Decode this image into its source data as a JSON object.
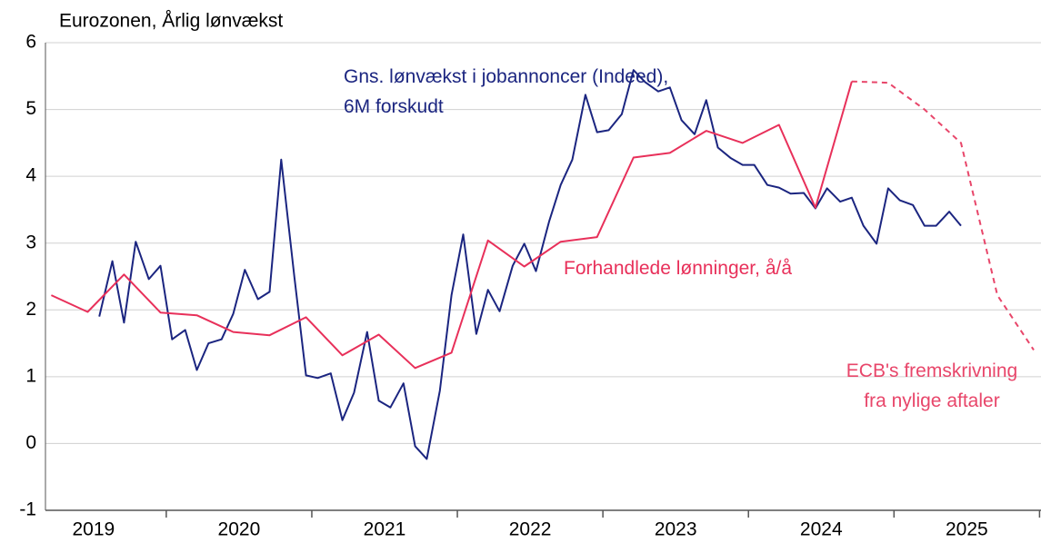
{
  "chart_data": {
    "type": "line",
    "title": "Eurozonen, Årlig lønvækst",
    "categories": [
      "2019",
      "2020",
      "2021",
      "2022",
      "2023",
      "2024",
      "2025"
    ],
    "xlim": [
      2019.17,
      2026.01
    ],
    "xticks": [
      2020,
      2021,
      2022,
      2023,
      2024,
      2025,
      2026
    ],
    "ylim": [
      -1,
      6
    ],
    "yticks": [
      -1,
      0,
      1,
      2,
      3,
      4,
      5,
      6
    ],
    "grid": true,
    "series": [
      {
        "name": "Gns. lønvækst i jobannoncer (Indeed),\n6M forskudt",
        "color": "#1b2580",
        "dashed": false,
        "x": [
          2019.54,
          2019.63,
          2019.71,
          2019.79,
          2019.88,
          2019.96,
          2020.04,
          2020.13,
          2020.21,
          2020.29,
          2020.38,
          2020.46,
          2020.54,
          2020.63,
          2020.71,
          2020.79,
          2020.88,
          2020.96,
          2021.04,
          2021.13,
          2021.21,
          2021.29,
          2021.38,
          2021.46,
          2021.54,
          2021.63,
          2021.71,
          2021.79,
          2021.88,
          2021.96,
          2022.04,
          2022.13,
          2022.21,
          2022.29,
          2022.38,
          2022.46,
          2022.54,
          2022.63,
          2022.71,
          2022.79,
          2022.88,
          2022.96,
          2023.04,
          2023.13,
          2023.21,
          2023.29,
          2023.38,
          2023.46,
          2023.54,
          2023.63,
          2023.71,
          2023.79,
          2023.88,
          2023.96,
          2024.04,
          2024.13,
          2024.21,
          2024.29,
          2024.38,
          2024.46,
          2024.54,
          2024.63,
          2024.71,
          2024.79,
          2024.88,
          2024.96,
          2025.04,
          2025.13,
          2025.21,
          2025.29,
          2025.38,
          2025.46
        ],
        "values": [
          1.9,
          2.73,
          1.81,
          3.02,
          2.46,
          2.66,
          1.56,
          1.7,
          1.1,
          1.5,
          1.56,
          1.94,
          2.6,
          2.16,
          2.27,
          4.25,
          2.49,
          1.02,
          0.98,
          1.05,
          0.35,
          0.76,
          1.67,
          0.64,
          0.54,
          0.9,
          -0.04,
          -0.23,
          0.79,
          2.22,
          3.13,
          1.64,
          2.3,
          1.98,
          2.66,
          2.99,
          2.58,
          3.32,
          3.87,
          4.25,
          5.22,
          4.66,
          4.69,
          4.93,
          5.59,
          5.41,
          5.27,
          5.33,
          4.84,
          4.63,
          5.14,
          4.43,
          4.27,
          4.17,
          4.17,
          3.87,
          3.83,
          3.74,
          3.75,
          3.52,
          3.82,
          3.62,
          3.68,
          3.26,
          2.99,
          3.82,
          3.64,
          3.57,
          3.26,
          3.26,
          3.47,
          3.26
        ]
      },
      {
        "name": "Forhandlede lønninger, å/å",
        "color": "#e8305a",
        "dashed": false,
        "x": [
          2019.21,
          2019.46,
          2019.71,
          2019.96,
          2020.21,
          2020.46,
          2020.71,
          2020.96,
          2021.21,
          2021.46,
          2021.71,
          2021.96,
          2022.21,
          2022.46,
          2022.71,
          2022.96,
          2023.21,
          2023.46,
          2023.71,
          2023.96,
          2024.21,
          2024.46,
          2024.71
        ],
        "values": [
          2.22,
          1.97,
          2.53,
          1.96,
          1.92,
          1.67,
          1.62,
          1.89,
          1.32,
          1.63,
          1.13,
          1.36,
          3.04,
          2.65,
          3.02,
          3.09,
          4.28,
          4.35,
          4.68,
          4.5,
          4.77,
          3.53,
          5.42
        ]
      },
      {
        "name": "ECB's fremskrivning\nfra nylige aftaler",
        "color": "#e8466a",
        "dashed": true,
        "x": [
          2024.71,
          2024.96,
          2025.21,
          2025.46,
          2025.71,
          2025.96
        ],
        "values": [
          5.42,
          5.4,
          5.0,
          4.5,
          2.22,
          1.4
        ]
      }
    ]
  }
}
